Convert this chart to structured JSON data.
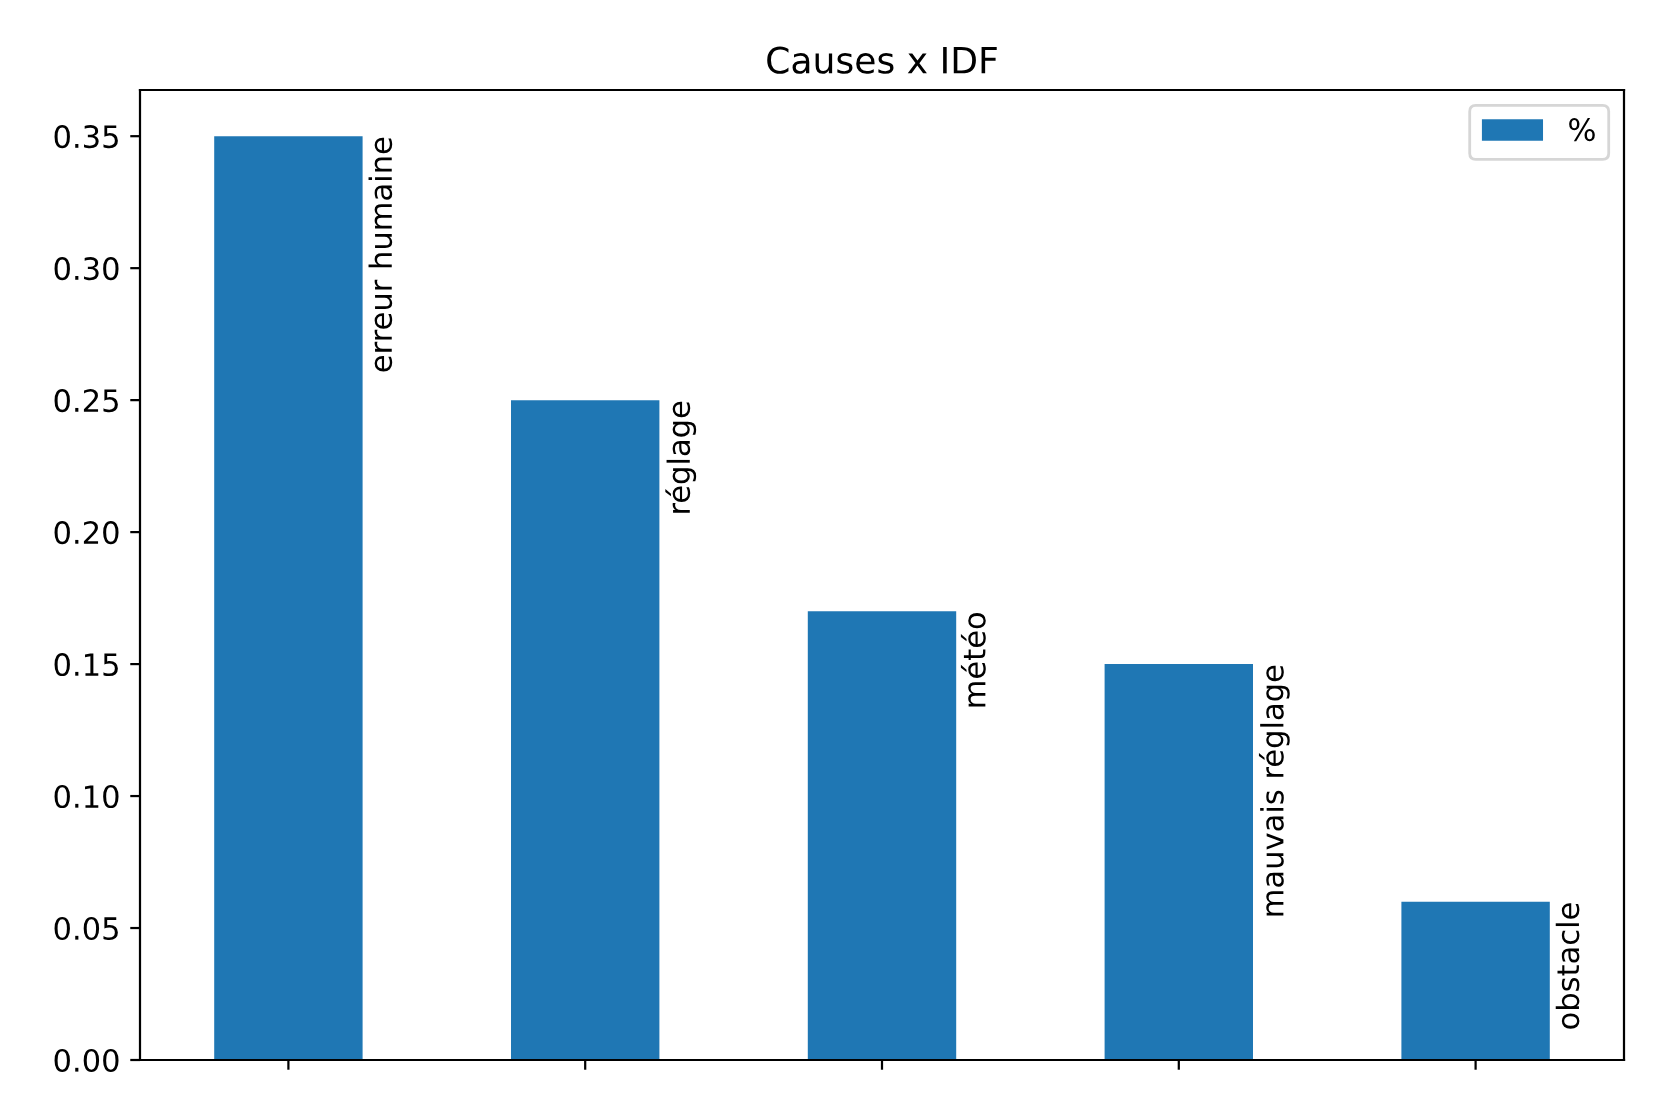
{
  "chart_data": {
    "type": "bar",
    "title": "Causes x IDF",
    "categories": [
      "erreur humaine",
      "réglage",
      "météo",
      "mauvais réglage",
      "obstacle"
    ],
    "series": [
      {
        "name": "%",
        "color": "#1f77b4",
        "values": [
          0.35,
          0.25,
          0.17,
          0.15,
          0.06
        ]
      }
    ],
    "ylim": [
      0,
      0.3675
    ],
    "yticks": [
      {
        "value": 0,
        "label": "0.00"
      },
      {
        "value": 0.05,
        "label": "0.05"
      },
      {
        "value": 0.1,
        "label": "0.10"
      },
      {
        "value": 0.15,
        "label": "0.15"
      },
      {
        "value": 0.2,
        "label": "0.20"
      },
      {
        "value": 0.25,
        "label": "0.25"
      },
      {
        "value": 0.3,
        "label": "0.30"
      },
      {
        "value": 0.35,
        "label": "0.35"
      }
    ],
    "legend": "top right",
    "grid": false
  }
}
